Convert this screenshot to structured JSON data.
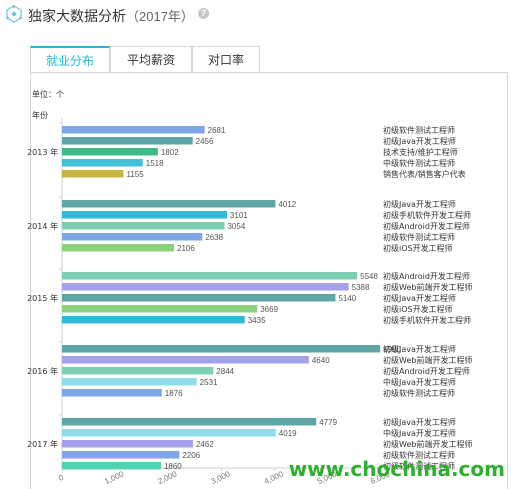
{
  "header": {
    "title": "独家大数据分析",
    "year_label": "（2017年）",
    "help_icon": "question-circle-icon",
    "logo_icon": "hexagon-network-icon"
  },
  "tabs": [
    {
      "label": "就业分布",
      "active": true
    },
    {
      "label": "平均薪资",
      "active": false
    },
    {
      "label": "对口率",
      "active": false
    }
  ],
  "unit_label": "单位：个",
  "axis_title": "年份",
  "watermark": "www.chochina.com",
  "chart_data": {
    "type": "bar",
    "orientation": "horizontal",
    "xlim": [
      0,
      6000
    ],
    "x_ticks": [
      "0",
      "1,000",
      "2,000",
      "3,000",
      "4,000",
      "5,000",
      "6,000"
    ],
    "grid": false,
    "groups": [
      {
        "year": "2013 年",
        "bars": [
          {
            "label": "初级软件测试工程师",
            "value": 2681,
            "color": "#7fa6e6"
          },
          {
            "label": "初级Java开发工程师",
            "value": 2456,
            "color": "#5fa6a6"
          },
          {
            "label": "技术支持/维护工程师",
            "value": 1802,
            "color": "#3dbb88"
          },
          {
            "label": "中级软件测试工程师",
            "value": 1518,
            "color": "#44c1d8"
          },
          {
            "label": "销售代表/销售客户代表",
            "value": 1155,
            "color": "#c9b43f"
          }
        ]
      },
      {
        "year": "2014 年",
        "bars": [
          {
            "label": "初级Java开发工程师",
            "value": 4012,
            "color": "#5fa6a6"
          },
          {
            "label": "初级手机软件开发工程师",
            "value": 3101,
            "color": "#37b7d8"
          },
          {
            "label": "初级Android开发工程师",
            "value": 3054,
            "color": "#7dcfb4"
          },
          {
            "label": "初级软件测试工程师",
            "value": 2638,
            "color": "#7fa6e6"
          },
          {
            "label": "初级iOS开发工程师",
            "value": 2106,
            "color": "#8cd07a"
          }
        ]
      },
      {
        "year": "2015 年",
        "bars": [
          {
            "label": "初级Android开发工程师",
            "value": 5548,
            "color": "#7dcfb4"
          },
          {
            "label": "初级Web前端开发工程师",
            "value": 5388,
            "color": "#a5a0ea"
          },
          {
            "label": "初级Java开发工程师",
            "value": 5140,
            "color": "#5fa6a6"
          },
          {
            "label": "初级iOS开发工程师",
            "value": 3669,
            "color": "#8cd07a"
          },
          {
            "label": "初级手机软件开发工程师",
            "value": 3435,
            "color": "#37b7d8"
          }
        ]
      },
      {
        "year": "2016 年",
        "bars": [
          {
            "label": "初级Java开发工程师",
            "value": 5980,
            "color": "#5fa6a6"
          },
          {
            "label": "初级Web前端开发工程师",
            "value": 4640,
            "color": "#a5a0ea"
          },
          {
            "label": "初级Android开发工程师",
            "value": 2844,
            "color": "#7dcfb4"
          },
          {
            "label": "中级Java开发工程师",
            "value": 2531,
            "color": "#8fdcea"
          },
          {
            "label": "初级软件测试工程师",
            "value": 1876,
            "color": "#7fa6e6"
          }
        ]
      },
      {
        "year": "2017 年",
        "bars": [
          {
            "label": "初级Java开发工程师",
            "value": 4779,
            "color": "#5fa6a6"
          },
          {
            "label": "中级Java开发工程师",
            "value": 4019,
            "color": "#8fdcea"
          },
          {
            "label": "初级Web前端开发工程师",
            "value": 2462,
            "color": "#a5a0ea"
          },
          {
            "label": "初级软件测试工程师",
            "value": 2206,
            "color": "#7fa6e6"
          },
          {
            "label": "初级软件测试工程师",
            "value": 1860,
            "color": "#4fd4b0"
          }
        ]
      }
    ]
  }
}
